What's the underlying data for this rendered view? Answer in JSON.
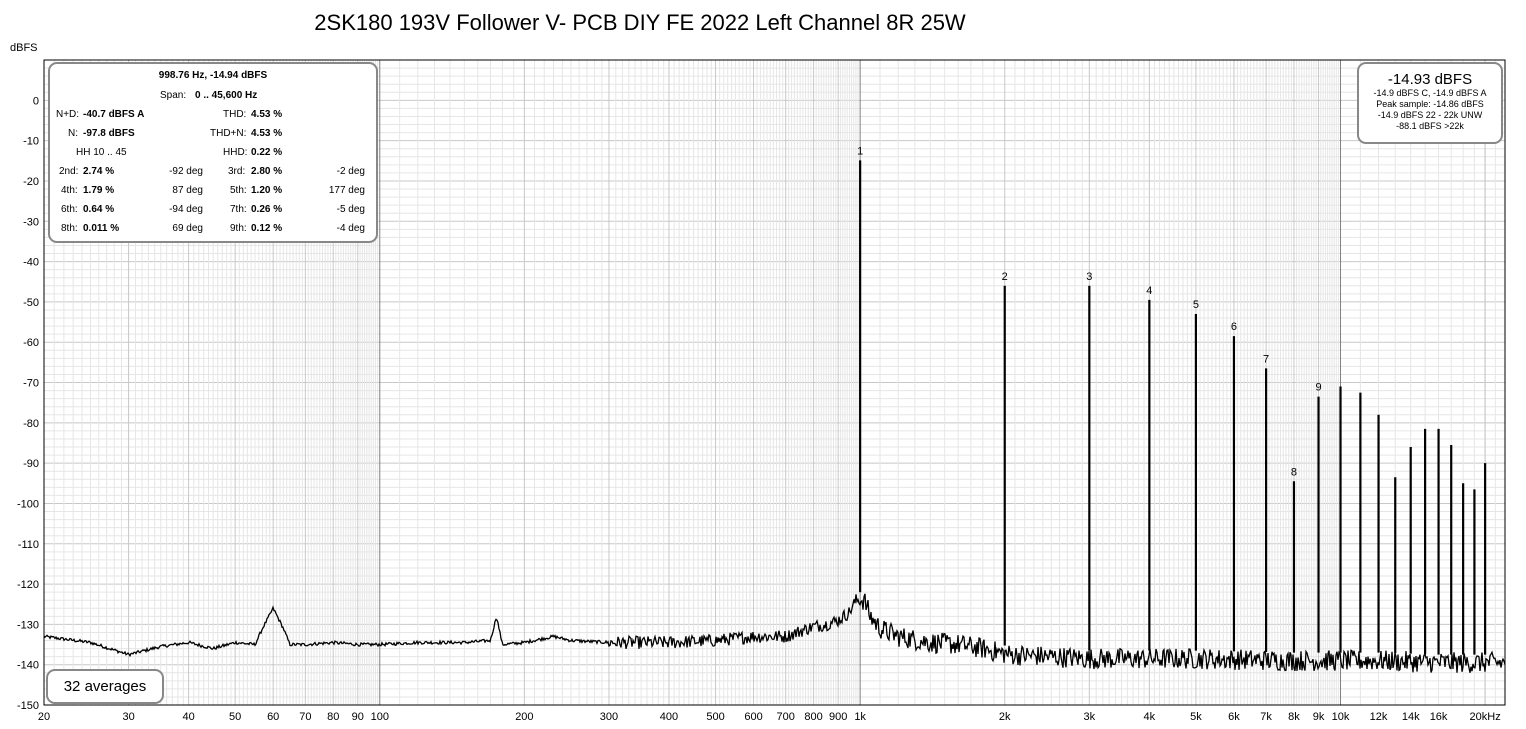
{
  "chart_data": {
    "type": "line",
    "title": "2SK180 193V Follower V- PCB DIY FE 2022 Left Channel 8R 25W",
    "ylabel": "dBFS",
    "xscale": "log",
    "xlim": [
      20,
      22000
    ],
    "ylim": [
      -150,
      10
    ],
    "grid": true,
    "x_tick_labels": [
      "20",
      "30",
      "40",
      "50",
      "60",
      "70",
      "80",
      "90",
      "100",
      "200",
      "300",
      "400",
      "500",
      "600",
      "700",
      "800",
      "900",
      "1k",
      "2k",
      "3k",
      "4k",
      "5k",
      "6k",
      "7k",
      "8k",
      "9k",
      "10k",
      "12k",
      "14k",
      "16k",
      "20kHz"
    ],
    "y_tick_labels": [
      "0",
      "-10",
      "-20",
      "-30",
      "-40",
      "-50",
      "-60",
      "-70",
      "-80",
      "-90",
      "-100",
      "-110",
      "-120",
      "-130",
      "-140",
      "-150"
    ],
    "harmonics": [
      {
        "label": "1",
        "x": 1000,
        "y": -14.9
      },
      {
        "label": "2",
        "x": 2000,
        "y": -46
      },
      {
        "label": "3",
        "x": 3000,
        "y": -46
      },
      {
        "label": "4",
        "x": 4000,
        "y": -49.5
      },
      {
        "label": "5",
        "x": 5000,
        "y": -53
      },
      {
        "label": "6",
        "x": 6000,
        "y": -58.5
      },
      {
        "label": "7",
        "x": 7000,
        "y": -66.5
      },
      {
        "label": "8",
        "x": 8000,
        "y": -94.5
      },
      {
        "label": "9",
        "x": 9000,
        "y": -73.5
      },
      {
        "label": "",
        "x": 10000,
        "y": -71
      },
      {
        "label": "",
        "x": 11000,
        "y": -72.5
      },
      {
        "label": "",
        "x": 12000,
        "y": -78
      },
      {
        "label": "",
        "x": 13000,
        "y": -93.5
      },
      {
        "label": "",
        "x": 14000,
        "y": -86
      },
      {
        "label": "",
        "x": 15000,
        "y": -81.5
      },
      {
        "label": "",
        "x": 16000,
        "y": -81.5
      },
      {
        "label": "",
        "x": 17000,
        "y": -85.5
      },
      {
        "label": "",
        "x": 18000,
        "y": -95
      },
      {
        "label": "",
        "x": 19000,
        "y": -96.5
      },
      {
        "label": "",
        "x": 20000,
        "y": -90
      }
    ],
    "noise_floor": {
      "x": [
        20,
        25,
        30,
        35,
        40,
        45,
        50,
        55,
        57,
        60,
        63,
        65,
        70,
        80,
        90,
        100,
        120,
        150,
        170,
        175,
        180,
        200,
        230,
        250,
        300,
        400,
        500,
        600,
        700,
        800,
        850,
        900,
        950,
        980,
        1020,
        1050,
        1100,
        1200,
        1400,
        1600,
        1800,
        1950,
        2050,
        2500,
        3000,
        5000,
        8000,
        12000,
        16000,
        20000,
        22000
      ],
      "y": [
        -133,
        -134.5,
        -137.5,
        -135.5,
        -134.5,
        -136,
        -134.5,
        -135,
        -131,
        -126,
        -131,
        -135,
        -135,
        -134.5,
        -135,
        -135,
        -134.5,
        -134.5,
        -134,
        -128,
        -135,
        -134.5,
        -133,
        -134,
        -134.5,
        -134.5,
        -134,
        -133,
        -133,
        -130.5,
        -130,
        -129,
        -127,
        -124,
        -124,
        -128,
        -131,
        -133,
        -134.5,
        -135,
        -136,
        -137,
        -137.5,
        -138,
        -138.5,
        -138.5,
        -139,
        -139,
        -139.5,
        -139.5,
        -139.5
      ]
    }
  },
  "stats_box": {
    "line1": "998.76 Hz, -14.94 dBFS",
    "span_label": "Span:",
    "span_value": "0 .. 45,600 Hz",
    "nd_label": "N+D:",
    "nd_value": "-40.7 dBFS A",
    "thd_label": "THD:",
    "thd_value": "4.53 %",
    "n_label": "N:",
    "n_value": "-97.8 dBFS",
    "thdn_label": "THD+N:",
    "thdn_value": "4.53 %",
    "hh_label": "HH 10 .. 45",
    "hhd_label": "HHD:",
    "hhd_value": "0.22 %",
    "rows": [
      {
        "l1": "2nd:",
        "v1": "2.74 %",
        "d1": "-92 deg",
        "l2": "3rd:",
        "v2": "2.80 %",
        "d2": "-2 deg"
      },
      {
        "l1": "4th:",
        "v1": "1.79 %",
        "d1": "87 deg",
        "l2": "5th:",
        "v2": "1.20 %",
        "d2": "177 deg"
      },
      {
        "l1": "6th:",
        "v1": "0.64 %",
        "d1": "-94 deg",
        "l2": "7th:",
        "v2": "0.26 %",
        "d2": "-5 deg"
      },
      {
        "l1": "8th:",
        "v1": "0.011 %",
        "d1": "69 deg",
        "l2": "9th:",
        "v2": "0.12 %",
        "d2": "-4 deg"
      }
    ]
  },
  "level_box": {
    "main": "-14.93 dBFS",
    "line1": "-14.9 dBFS C, -14.9 dBFS A",
    "line2": "Peak sample: -14.86 dBFS",
    "line3": "-14.9 dBFS 22 - 22k UNW",
    "line4": "-88.1 dBFS >22k"
  },
  "averages_label": "32 averages",
  "colors": {
    "trace": "#000000",
    "grid_major": "#c8c8c8",
    "grid_minor": "#e6e6e6",
    "decade_line": "#808080",
    "box_border": "#888888"
  }
}
